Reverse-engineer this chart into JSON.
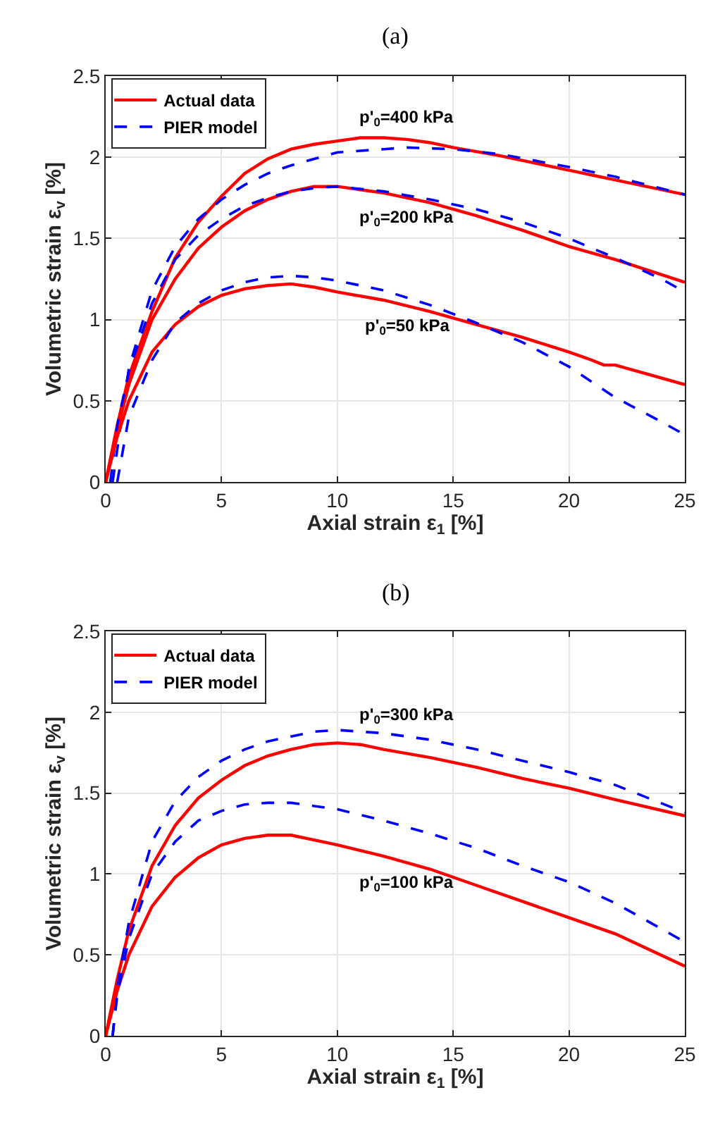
{
  "chart_data": [
    {
      "type": "line",
      "title": "(a)",
      "xlabel": "Axial strain ε$_{1}$ [%]",
      "ylabel": "Volumetric strain ε$_{v}$ [%]",
      "xlim": [
        0,
        25
      ],
      "xticks": [
        0,
        5,
        10,
        15,
        20,
        25
      ],
      "ylim": [
        0,
        2.5
      ],
      "yticks": [
        0,
        0.5,
        1,
        1.5,
        2,
        2.5
      ],
      "grid": true,
      "legend": "top left",
      "marker": "none",
      "annotations": [
        "p'$_{0}$=400 kPa",
        "p'$_{0}$=200 kPa",
        "p'$_{0}$=50 kPa"
      ],
      "series": [
        {
          "name": "Actual data",
          "color": "#ff0000",
          "line_style": "solid",
          "x": [
            0,
            0.5,
            1,
            2,
            3,
            4,
            5,
            6,
            7,
            8,
            9,
            10,
            11,
            12,
            13,
            14,
            15,
            17,
            20,
            22,
            25
          ],
          "values": [
            0,
            0.35,
            0.65,
            1.05,
            1.38,
            1.6,
            1.76,
            1.9,
            1.99,
            2.05,
            2.08,
            2.1,
            2.12,
            2.12,
            2.11,
            2.09,
            2.06,
            2.01,
            1.92,
            1.86,
            1.77
          ]
        },
        {
          "name": "PIER model",
          "color": "#0000ff",
          "line_style": "dashed",
          "x": [
            0.3,
            0.7,
            1,
            2,
            3,
            4,
            5,
            6,
            7,
            8,
            9,
            10,
            12,
            13,
            15,
            17,
            20,
            22,
            25
          ],
          "values": [
            0,
            0.4,
            0.7,
            1.18,
            1.45,
            1.62,
            1.74,
            1.83,
            1.9,
            1.95,
            1.99,
            2.03,
            2.05,
            2.06,
            2.05,
            2.02,
            1.94,
            1.88,
            1.77
          ]
        },
        {
          "color": "#ff0000",
          "line_style": "solid",
          "x": [
            0,
            0.5,
            1,
            2,
            3,
            4,
            5,
            6,
            7,
            8,
            9,
            10,
            11,
            12,
            14,
            16,
            18,
            20,
            22,
            25
          ],
          "values": [
            0,
            0.32,
            0.6,
            1.0,
            1.25,
            1.44,
            1.57,
            1.67,
            1.74,
            1.79,
            1.82,
            1.82,
            1.8,
            1.78,
            1.72,
            1.64,
            1.55,
            1.45,
            1.37,
            1.23
          ]
        },
        {
          "color": "#0000ff",
          "line_style": "dashed",
          "x": [
            0.2,
            0.5,
            1,
            2,
            3,
            4,
            5,
            6,
            7,
            8,
            9,
            10,
            12,
            14,
            16,
            18,
            20,
            22,
            24,
            25
          ],
          "values": [
            0,
            0.35,
            0.68,
            1.1,
            1.37,
            1.52,
            1.62,
            1.7,
            1.75,
            1.79,
            1.81,
            1.82,
            1.79,
            1.74,
            1.68,
            1.6,
            1.5,
            1.38,
            1.25,
            1.17
          ]
        },
        {
          "color": "#ff0000",
          "line_style": "solid",
          "x": [
            0,
            0.5,
            1,
            2,
            3,
            4,
            5,
            6,
            7,
            8,
            9,
            10,
            12,
            14,
            16,
            18,
            20,
            21,
            21.5,
            22,
            23,
            25
          ],
          "values": [
            0,
            0.28,
            0.5,
            0.8,
            0.97,
            1.08,
            1.15,
            1.19,
            1.21,
            1.22,
            1.2,
            1.17,
            1.12,
            1.05,
            0.97,
            0.89,
            0.8,
            0.75,
            0.72,
            0.72,
            0.68,
            0.6
          ]
        },
        {
          "color": "#0000ff",
          "line_style": "dashed",
          "x": [
            0.5,
            1,
            2,
            3,
            4,
            5,
            6,
            7,
            8,
            9,
            10,
            12,
            14,
            16,
            18,
            20,
            22,
            24,
            25
          ],
          "values": [
            0,
            0.4,
            0.75,
            0.98,
            1.1,
            1.18,
            1.23,
            1.26,
            1.27,
            1.26,
            1.24,
            1.18,
            1.09,
            0.98,
            0.86,
            0.71,
            0.52,
            0.37,
            0.29
          ]
        }
      ]
    },
    {
      "type": "line",
      "title": "(b)",
      "xlabel": "Axial strain ε$_{1}$ [%]",
      "ylabel": "Volumetric strain ε$_{v}$ [%]",
      "xlim": [
        0,
        25
      ],
      "xticks": [
        0,
        5,
        10,
        15,
        20,
        25
      ],
      "ylim": [
        0,
        2.5
      ],
      "yticks": [
        0,
        0.5,
        1,
        1.5,
        2,
        2.5
      ],
      "grid": true,
      "legend": "top left",
      "marker": "none",
      "annotations": [
        "p'$_{0}$=300 kPa",
        "p'$_{0}$=100 kPa"
      ],
      "series": [
        {
          "name": "Actual data",
          "color": "#ff0000",
          "line_style": "solid",
          "x": [
            0,
            0.5,
            1,
            2,
            3,
            4,
            5,
            6,
            7,
            8,
            9,
            10,
            11,
            12,
            14,
            16,
            18,
            20,
            22,
            25
          ],
          "values": [
            0,
            0.35,
            0.65,
            1.05,
            1.3,
            1.47,
            1.58,
            1.67,
            1.73,
            1.77,
            1.8,
            1.81,
            1.8,
            1.77,
            1.72,
            1.66,
            1.59,
            1.53,
            1.46,
            1.36
          ]
        },
        {
          "name": "PIER model",
          "color": "#0000ff",
          "line_style": "dashed",
          "x": [
            0.3,
            0.5,
            1,
            2,
            3,
            4,
            5,
            6,
            7,
            8,
            9,
            10,
            11,
            12,
            14,
            16,
            18,
            20,
            22,
            25
          ],
          "values": [
            0,
            0.3,
            0.7,
            1.2,
            1.45,
            1.6,
            1.7,
            1.77,
            1.82,
            1.85,
            1.88,
            1.89,
            1.88,
            1.87,
            1.83,
            1.77,
            1.7,
            1.63,
            1.55,
            1.38
          ]
        },
        {
          "color": "#ff0000",
          "line_style": "solid",
          "x": [
            0,
            0.5,
            1,
            2,
            3,
            4,
            5,
            6,
            7,
            8,
            9,
            10,
            12,
            14,
            16,
            18,
            20,
            22,
            25
          ],
          "values": [
            0,
            0.28,
            0.5,
            0.8,
            0.98,
            1.1,
            1.18,
            1.22,
            1.24,
            1.24,
            1.21,
            1.18,
            1.11,
            1.03,
            0.93,
            0.83,
            0.73,
            0.63,
            0.43
          ]
        },
        {
          "color": "#0000ff",
          "line_style": "dashed",
          "x": [
            0.3,
            0.5,
            1,
            2,
            3,
            4,
            5,
            6,
            7,
            8,
            9,
            10,
            12,
            14,
            16,
            18,
            20,
            22,
            25
          ],
          "values": [
            0,
            0.25,
            0.6,
            1.0,
            1.2,
            1.33,
            1.39,
            1.43,
            1.44,
            1.44,
            1.42,
            1.4,
            1.33,
            1.25,
            1.16,
            1.05,
            0.95,
            0.82,
            0.58
          ]
        }
      ]
    }
  ]
}
